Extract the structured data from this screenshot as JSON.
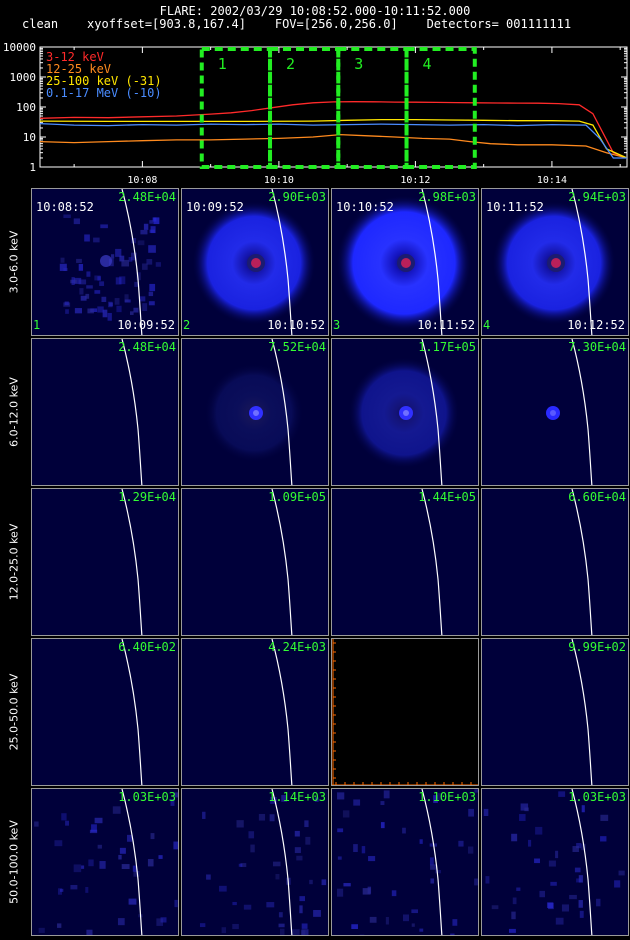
{
  "header": {
    "line1": "FLARE: 2002/03/29 10:08:52.000-10:11:52.000",
    "line2": "clean    xyoffset=[903.8,167.4]    FOV=[256.0,256.0]    Detectors= 001111111"
  },
  "chart_data": [
    {
      "type": "line",
      "title": "",
      "xlabel": "",
      "ylabel": "",
      "yscale": "log",
      "ylim": [
        1,
        10000
      ],
      "y_ticks": [
        "1",
        "10",
        "100",
        "1000",
        "10000"
      ],
      "x_ticks": [
        "10:08",
        "10:10",
        "10:12",
        "10:14"
      ],
      "x_tick_minutes": [
        8,
        10,
        12,
        14
      ],
      "xlim_minutes": [
        6.5,
        15.1
      ],
      "legend_position": "top-left",
      "series": [
        {
          "name": "3-12 keV",
          "color": "#ff2a2a",
          "x": [
            6.5,
            7.0,
            7.5,
            8.0,
            8.5,
            9.0,
            9.3,
            9.6,
            9.9,
            10.2,
            10.5,
            10.8,
            11.1,
            11.4,
            11.7,
            12.0,
            12.3,
            12.6,
            12.9,
            13.2,
            13.5,
            13.8,
            14.1,
            14.4,
            14.6,
            14.9,
            15.1
          ],
          "y": [
            42,
            45,
            44,
            47,
            50,
            58,
            64,
            76,
            95,
            118,
            138,
            148,
            150,
            149,
            146,
            144,
            142,
            140,
            138,
            136,
            135,
            134,
            130,
            118,
            60,
            3,
            2
          ]
        },
        {
          "name": "12-25 keV",
          "color": "#ff8a1e",
          "x": [
            6.5,
            7.0,
            7.5,
            8.0,
            8.5,
            9.0,
            9.5,
            10.0,
            10.5,
            10.9,
            11.3,
            11.7,
            12.1,
            12.5,
            12.8,
            13.1,
            13.5,
            14.0,
            14.5,
            14.8,
            15.1
          ],
          "y": [
            7,
            6.5,
            7,
            7.5,
            8,
            8,
            8.5,
            9,
            10,
            12,
            11,
            10,
            9,
            8.5,
            7,
            6,
            5.5,
            5.5,
            5,
            3,
            2
          ]
        },
        {
          "name": "25-100 keV (-31)",
          "color": "#ffe600",
          "x": [
            6.5,
            7.5,
            8.5,
            9.5,
            10.5,
            11.0,
            11.5,
            12.0,
            12.5,
            13.0,
            13.5,
            14.0,
            14.4,
            14.6,
            14.8,
            15.1
          ],
          "y": [
            34,
            33,
            33,
            33,
            34,
            36,
            38,
            38,
            37,
            36,
            35,
            35,
            34,
            25,
            4,
            2
          ]
        },
        {
          "name": "0.1-17 MeV (-10)",
          "color": "#4a8cff",
          "x": [
            6.5,
            7.0,
            7.5,
            8.0,
            8.5,
            9.0,
            9.5,
            10.0,
            10.5,
            11.0,
            11.5,
            12.0,
            12.5,
            13.0,
            13.5,
            14.0,
            14.5,
            14.7,
            14.9,
            15.1
          ],
          "y": [
            28,
            25,
            24,
            26,
            25,
            27,
            26,
            27,
            25,
            26,
            27,
            26,
            25,
            26,
            24,
            26,
            25,
            9,
            2,
            2
          ]
        }
      ],
      "intervals": [
        {
          "label": "1",
          "start": 8.87,
          "end": 9.87
        },
        {
          "label": "2",
          "start": 9.87,
          "end": 10.87
        },
        {
          "label": "3",
          "start": 10.87,
          "end": 11.87
        },
        {
          "label": "4",
          "start": 11.87,
          "end": 12.87
        }
      ]
    },
    {
      "type": "heatmap",
      "energy_bands": [
        "3.0-6.0 keV",
        "6.0-12.0 keV",
        "12.0-25.0 keV",
        "25.0-50.0 keV",
        "50.0-100.0 keV"
      ],
      "interval_start_times": [
        "10:08:52",
        "10:09:52",
        "10:10:52",
        "10:11:52"
      ],
      "interval_end_times": [
        "10:09:52",
        "10:10:52",
        "10:11:52",
        "10:12:52"
      ],
      "interval_labels": [
        "1",
        "2",
        "3",
        "4"
      ],
      "max_values": [
        [
          "2.48E+04",
          "2.90E+03",
          "2.98E+03",
          "2.94E+03"
        ],
        [
          "2.48E+04",
          "7.52E+04",
          "1.17E+05",
          "7.30E+04"
        ],
        [
          "1.29E+04",
          "1.09E+05",
          "1.44E+05",
          "6.60E+04"
        ],
        [
          "6.40E+02",
          "4.24E+03",
          "",
          "9.99E+02"
        ],
        [
          "1.03E+03",
          "1.14E+03",
          "1.10E+03",
          "1.03E+03"
        ]
      ],
      "pattern": [
        [
          "noise-faint",
          "ring-bright",
          "ring-brighter",
          "ring-bright"
        ],
        [
          "empty",
          "ring-faint",
          "ring-medium",
          "source-small"
        ],
        [
          "empty",
          "empty",
          "empty",
          "empty"
        ],
        [
          "empty",
          "empty",
          "blank-black",
          "empty"
        ],
        [
          "noise-faint",
          "noise-faint",
          "noise-faint",
          "noise-faint"
        ]
      ],
      "colors": {
        "background": "#00003a",
        "max_label": "#33ff33",
        "limb": "#ffffff",
        "blank_axis": "#ff6a00"
      }
    }
  ]
}
